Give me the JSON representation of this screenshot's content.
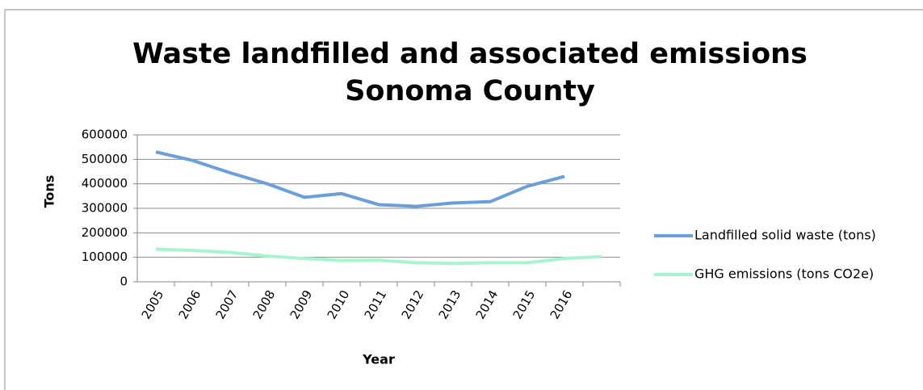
{
  "chart_data": {
    "type": "line",
    "title": "Waste landfilled and associated emissions",
    "subtitle": "Sonoma County",
    "y_label": "Tons",
    "x_label": "Year",
    "categories": [
      "2005",
      "2006",
      "2007",
      "2008",
      "2009",
      "2010",
      "2011",
      "2012",
      "2013",
      "2014",
      "2015",
      "2016",
      null
    ],
    "series": [
      {
        "name": "Landfilled solid waste (tons)",
        "color": "#6a9fdb",
        "values": [
          530000,
          495000,
          445000,
          400000,
          345000,
          360000,
          315000,
          308000,
          322000,
          327000,
          390000,
          430000,
          null
        ]
      },
      {
        "name": "GHG emissions (tons CO2e)",
        "color": "#a6f5d0",
        "values": [
          133000,
          128000,
          120000,
          105000,
          95000,
          87000,
          88000,
          78000,
          75000,
          78000,
          78000,
          95000,
          103000
        ]
      }
    ],
    "ylim": [
      0,
      600000
    ],
    "yticks": [
      0,
      100000,
      200000,
      300000,
      400000,
      500000,
      600000
    ],
    "grid": true,
    "legend": "right"
  }
}
